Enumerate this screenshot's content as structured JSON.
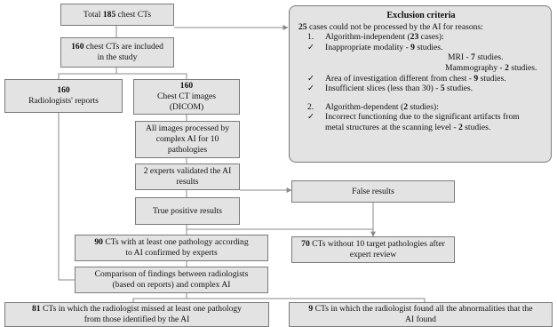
{
  "total": {
    "prefix": "Total ",
    "num": "185",
    "suffix": " chest CTs"
  },
  "included": {
    "num": "160",
    "text": " chest CTs are included",
    "line2": "in the study"
  },
  "reports": {
    "num": "160",
    "label": "Radiologists' reports"
  },
  "images": {
    "num": "160",
    "line1": "Chest CT images",
    "line2": "(DICOM)"
  },
  "processed": {
    "line1": "All images processed by",
    "line2": "complex AI for 10",
    "line3": "pathologies"
  },
  "validated": {
    "line1": "2 experts validated the AI",
    "line2": "results"
  },
  "true_positive": {
    "label": "True positive results"
  },
  "false_results": {
    "label": "False results"
  },
  "confirmed": {
    "num": "90",
    "line1": " CTs with at least one pathology according",
    "line2": "to AI confirmed by experts"
  },
  "no_pathology": {
    "num": "70",
    "line1": " CTs without 10 target pathologies after",
    "line2": "expert review"
  },
  "comparison": {
    "line1": "Comparison of findings between radiologists",
    "line2": "(based on reports) and complex AI"
  },
  "missed": {
    "num": "81",
    "line1": " CTs in which the radiologist missed at least one pathology",
    "line2": "from those identified by the AI"
  },
  "found_all": {
    "num": "9",
    "line1": " CTs in which the radiologist found all the abnormalities that the",
    "line2": "AI found"
  },
  "exclusion": {
    "title": "Exclusion criteria",
    "intro_num": "25",
    "intro_text": " cases could not be processed by the AI for reasons:",
    "g1_marker": "1.",
    "g1_text": "Algorithm-independent (",
    "g1_num": "23",
    "g1_tail": " cases):",
    "check": "✓",
    "modality_text": "Inappropriate modality - ",
    "modality_num": "9",
    "modality_tail": " studies.",
    "mri_text": "MRI - ",
    "mri_num": "7",
    "mri_tail": " studies.",
    "mammo_text": "Mammography - ",
    "mammo_num": "2",
    "mammo_tail": " studies.",
    "area_text": "Area of investigation different from chest - ",
    "area_num": "9",
    "area_tail": " studies.",
    "slices_text": "Insufficient slices (less than 30) - ",
    "slices_num": "5",
    "slices_tail": " studies.",
    "g2_marker": "2.",
    "g2_text": "Algorithm-dependent (",
    "g2_num": "2",
    "g2_tail": " studies):",
    "artifact_line1": "Incorrect functioning due to the significant artifacts from",
    "artifact_line2": "metal structures at the scanning level - ",
    "artifact_num": "2",
    "artifact_tail": " studies."
  }
}
